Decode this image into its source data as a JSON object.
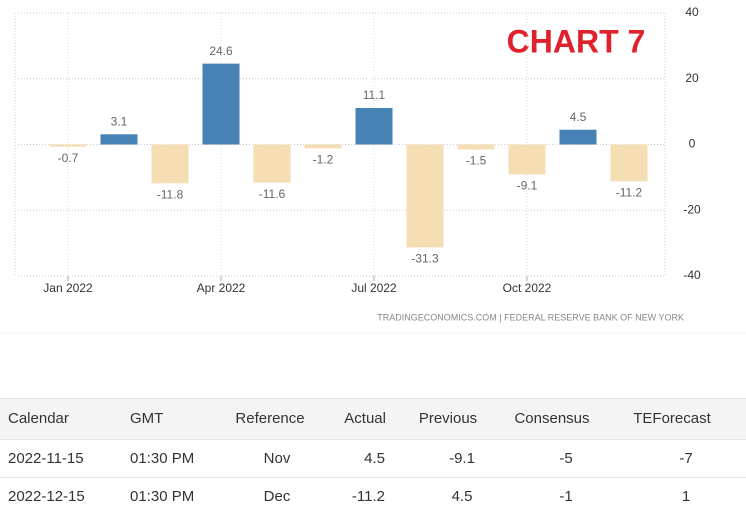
{
  "chart_data": {
    "type": "bar",
    "annotation": "CHART 7",
    "source": "TRADINGECONOMICS.COM | FEDERAL RESERVE BANK OF NEW YORK",
    "categories": [
      "Jan 2022",
      null,
      null,
      "Apr 2022",
      null,
      null,
      "Jul 2022",
      null,
      null,
      "Oct 2022",
      null,
      null
    ],
    "values": [
      -0.7,
      3.1,
      -11.8,
      24.6,
      -11.6,
      -1.2,
      11.1,
      -31.3,
      -1.5,
      -9.1,
      4.5,
      -11.2
    ],
    "positive_color": "#4682b4",
    "negative_color": "#f5deb3",
    "ylim": [
      -40,
      40
    ],
    "yticks": [
      -40,
      -20,
      0,
      20,
      40
    ],
    "grid": true,
    "y_axis_side": "right"
  },
  "table": {
    "header": [
      "Calendar",
      "GMT",
      "Reference",
      "Actual",
      "Previous",
      "Consensus",
      "TEForecast"
    ],
    "rows": [
      [
        "2022-11-15",
        "01:30 PM",
        "Nov",
        "4.5",
        "-9.1",
        "-5",
        "-7"
      ],
      [
        "2022-12-15",
        "01:30 PM",
        "Dec",
        "-11.2",
        "4.5",
        "-1",
        "1"
      ]
    ]
  }
}
